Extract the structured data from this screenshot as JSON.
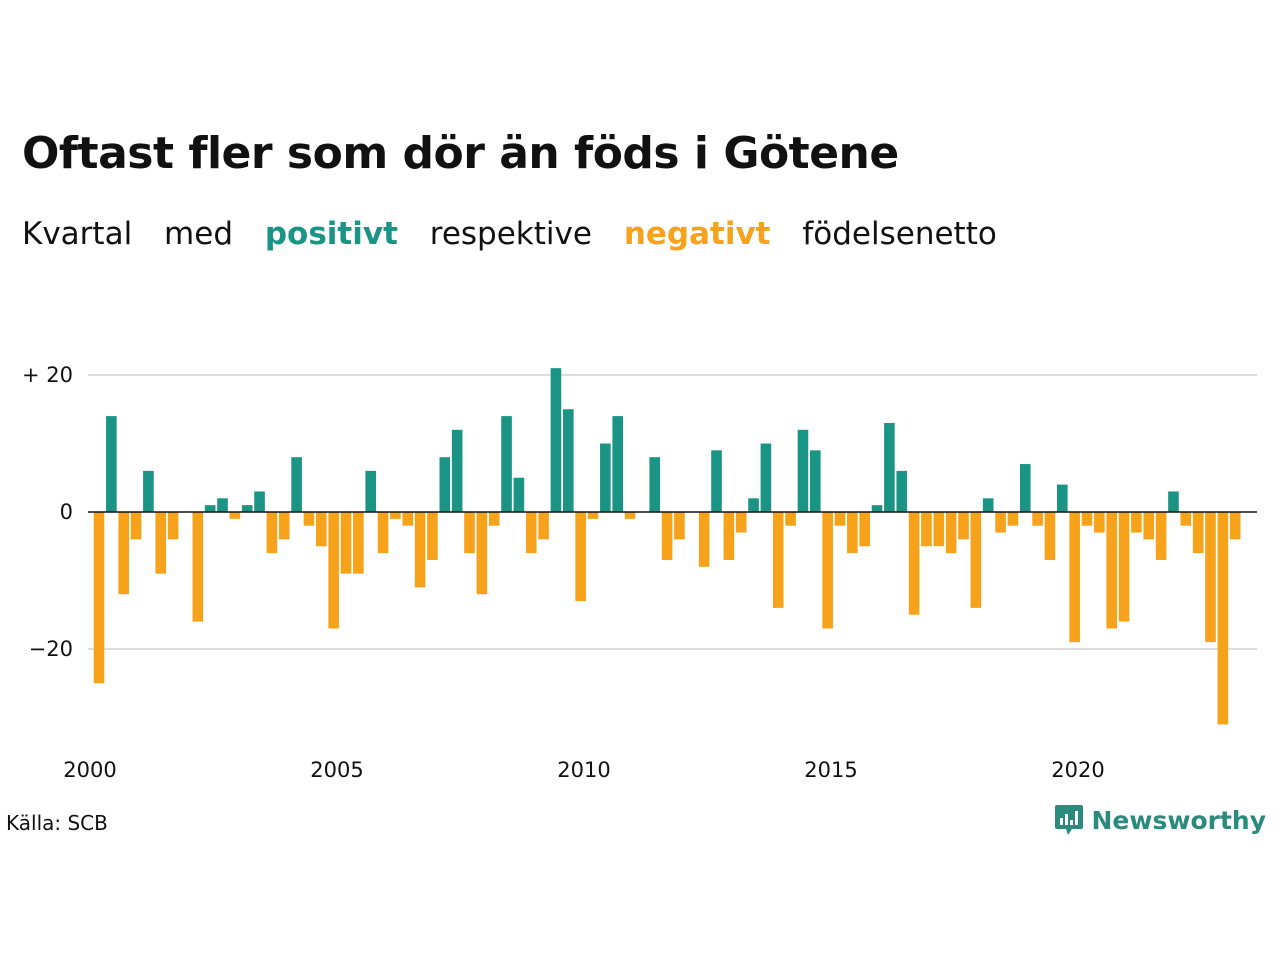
{
  "header": {
    "title": "Oftast fler som dör än föds i Götene",
    "subtitle": {
      "part1": "Kvartal",
      "part2": "med",
      "positive": "positivt",
      "part3": "respektive",
      "negative": "negativt",
      "part4": "födelsenetto"
    }
  },
  "footer": {
    "source": "Källa: SCB",
    "brand": "Newsworthy"
  },
  "colors": {
    "positive": "#1a9484",
    "negative": "#f7a21b",
    "grid": "#dddddd",
    "brand": "#2a8a7c"
  },
  "chart_data": {
    "type": "bar",
    "title": "Oftast fler som dör än föds i Götene",
    "xlabel": "",
    "ylabel": "",
    "ylim": [
      -31,
      21
    ],
    "yticks": [
      {
        "value": 20,
        "label": "+ 20"
      },
      {
        "value": 0,
        "label": "0"
      },
      {
        "value": -20,
        "label": "−20"
      }
    ],
    "xticks": [
      {
        "value": 2000,
        "label": "2000"
      },
      {
        "value": 2005,
        "label": "2005"
      },
      {
        "value": 2010,
        "label": "2010"
      },
      {
        "value": 2015,
        "label": "2015"
      },
      {
        "value": 2020,
        "label": "2020"
      }
    ],
    "start_year": 2000,
    "start_quarter": 1,
    "values": [
      -25,
      14,
      -12,
      -4,
      6,
      -9,
      -4,
      0,
      -16,
      1,
      2,
      -1,
      1,
      3,
      -6,
      -4,
      8,
      -2,
      -5,
      -17,
      -9,
      -9,
      6,
      -6,
      -1,
      -2,
      -11,
      -7,
      8,
      12,
      -6,
      -12,
      -2,
      14,
      5,
      -6,
      -4,
      21,
      15,
      -13,
      -1,
      10,
      14,
      -1,
      0,
      8,
      -7,
      -4,
      0,
      -8,
      9,
      -7,
      -3,
      2,
      10,
      -14,
      -2,
      12,
      9,
      -17,
      -2,
      -6,
      -5,
      1,
      13,
      6,
      -15,
      -5,
      -5,
      -6,
      -4,
      -14,
      2,
      -3,
      -2,
      7,
      -2,
      -7,
      4,
      -19,
      -2,
      -3,
      -17,
      -16,
      -3,
      -4,
      -7,
      3,
      -2,
      -6,
      -19,
      -31,
      -4
    ]
  }
}
